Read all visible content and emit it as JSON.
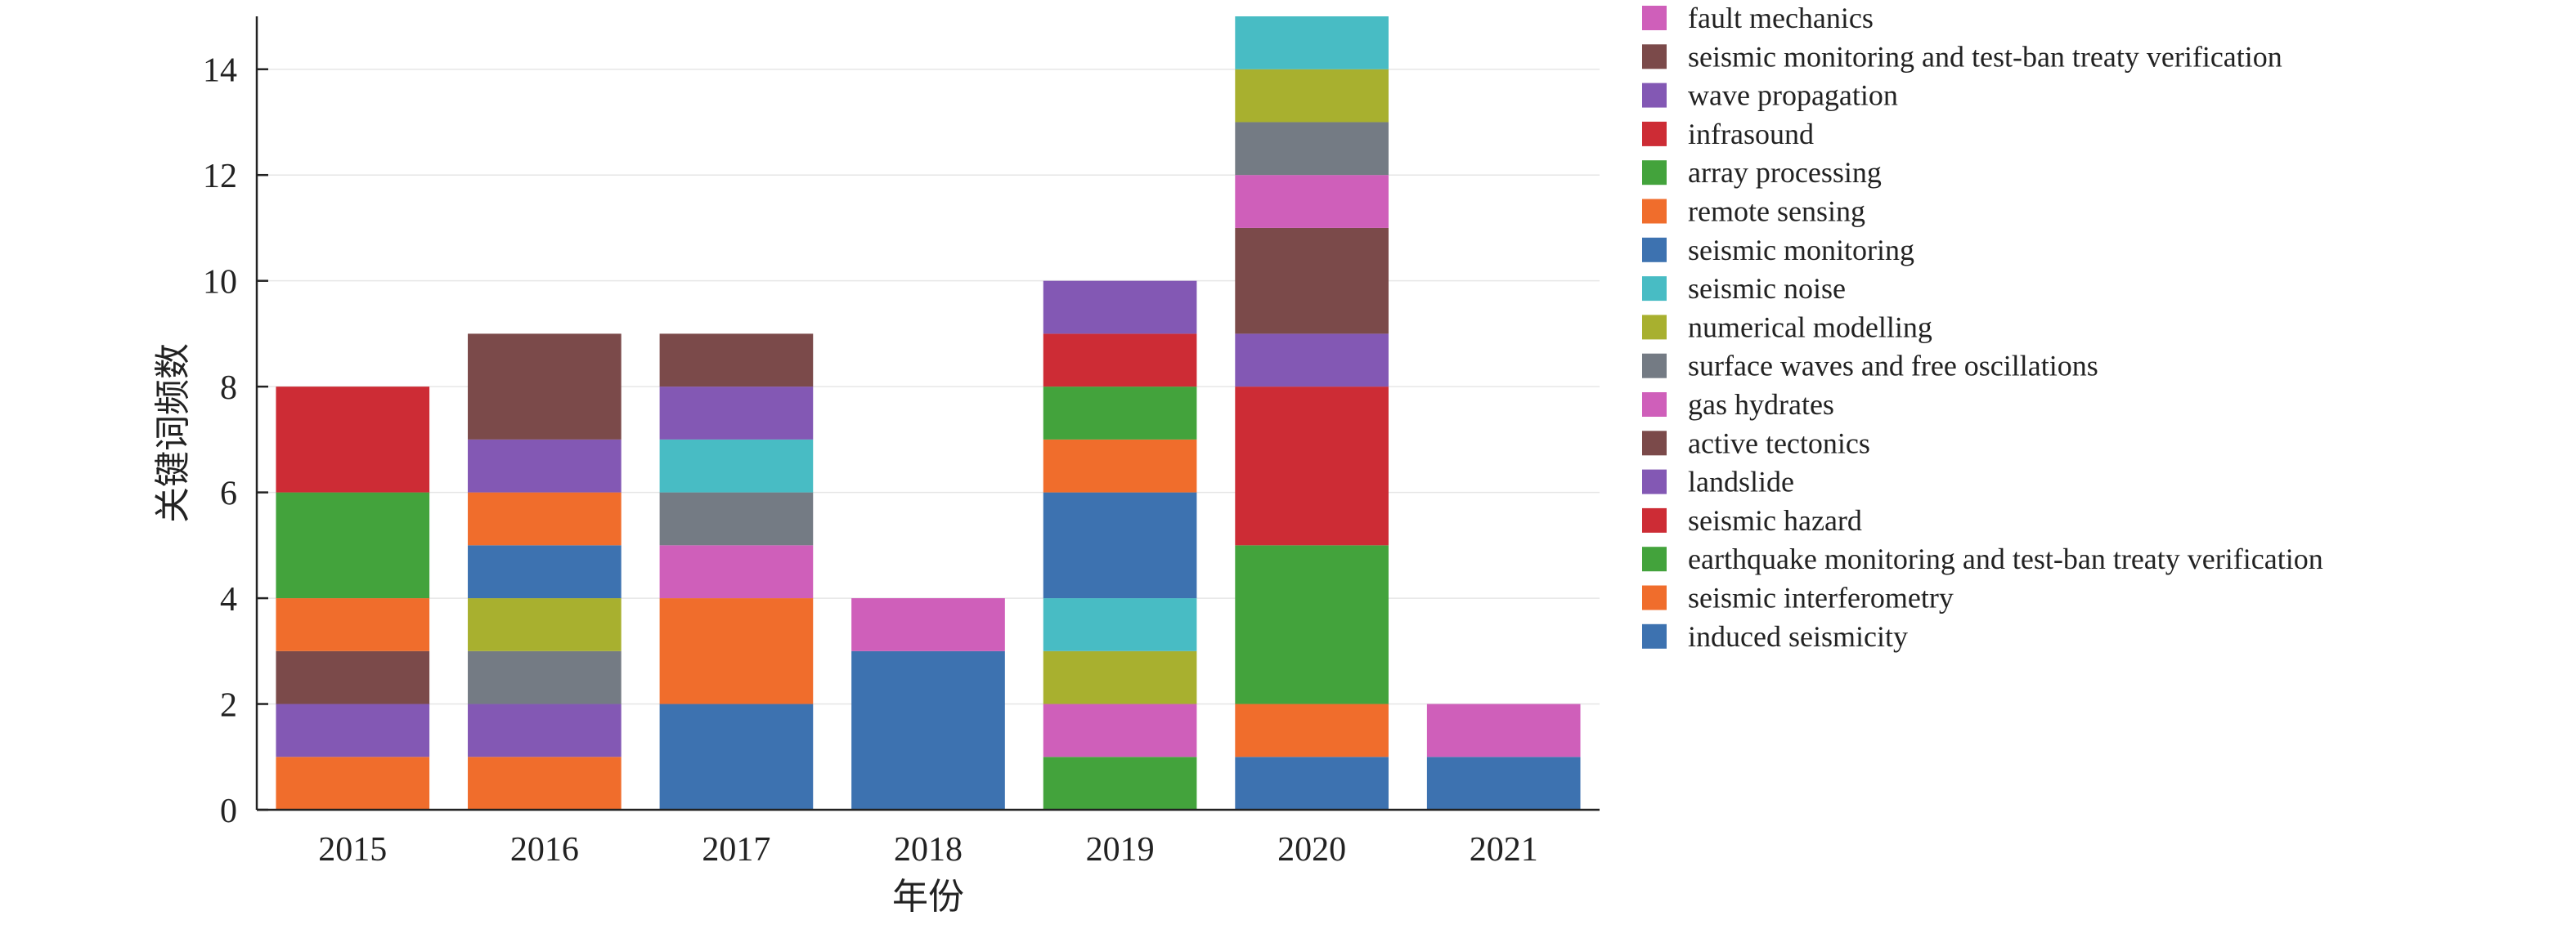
{
  "chart_data": {
    "type": "bar",
    "stacked": true,
    "title": "",
    "xlabel": "年份",
    "ylabel": "关键词频数",
    "ylim": [
      0,
      15
    ],
    "yticks": [
      0,
      2,
      4,
      6,
      8,
      10,
      12,
      14
    ],
    "grid": true,
    "legend_position": "right",
    "categories": [
      "2015",
      "2016",
      "2017",
      "2018",
      "2019",
      "2020",
      "2021"
    ],
    "series": [
      {
        "name": "induced seismicity",
        "color": "#3d72b0",
        "values": [
          0,
          0,
          2,
          3,
          0,
          1,
          1
        ]
      },
      {
        "name": "seismic interferometry",
        "color": "#f06d2c",
        "values": [
          1,
          1,
          2,
          0,
          0,
          1,
          0
        ]
      },
      {
        "name": "earthquake monitoring and test-ban treaty verification",
        "color": "#43a33c",
        "values": [
          0,
          0,
          0,
          0,
          1,
          3,
          0
        ]
      },
      {
        "name": "seismic hazard",
        "color": "#cd2c35",
        "values": [
          0,
          0,
          0,
          0,
          0,
          3,
          0
        ]
      },
      {
        "name": "landslide",
        "color": "#8358b4",
        "values": [
          1,
          1,
          0,
          0,
          0,
          1,
          0
        ]
      },
      {
        "name": "active tectonics",
        "color": "#7b4a4a",
        "values": [
          1,
          0,
          0,
          0,
          0,
          2,
          0
        ]
      },
      {
        "name": "gas hydrates",
        "color": "#cf5fba",
        "values": [
          0,
          0,
          1,
          1,
          1,
          1,
          1
        ]
      },
      {
        "name": "surface waves and free oscillations",
        "color": "#747b84",
        "values": [
          0,
          1,
          1,
          0,
          0,
          1,
          0
        ]
      },
      {
        "name": "numerical modelling",
        "color": "#a8b02f",
        "values": [
          0,
          1,
          0,
          0,
          1,
          1,
          0
        ]
      },
      {
        "name": "seismic noise",
        "color": "#48bcc4",
        "values": [
          0,
          0,
          1,
          0,
          1,
          1,
          0
        ]
      },
      {
        "name": "seismic monitoring",
        "color": "#3d72b0",
        "values": [
          0,
          1,
          0,
          0,
          2,
          0,
          0
        ]
      },
      {
        "name": "remote sensing",
        "color": "#f06d2c",
        "values": [
          1,
          1,
          0,
          0,
          1,
          0,
          0
        ]
      },
      {
        "name": "array processing",
        "color": "#43a33c",
        "values": [
          2,
          0,
          0,
          0,
          1,
          0,
          0
        ]
      },
      {
        "name": "infrasound",
        "color": "#cd2c35",
        "values": [
          2,
          0,
          0,
          0,
          1,
          0,
          0
        ]
      },
      {
        "name": "wave propagation",
        "color": "#8358b4",
        "values": [
          0,
          1,
          1,
          0,
          1,
          0,
          0
        ]
      },
      {
        "name": "seismic monitoring and test-ban treaty verification",
        "color": "#7b4a4a",
        "values": [
          0,
          2,
          1,
          0,
          0,
          0,
          0
        ]
      },
      {
        "name": "fault mechanics",
        "color": "#cf5fba",
        "values": [
          0,
          0,
          0,
          0,
          0,
          0,
          0
        ]
      }
    ]
  }
}
